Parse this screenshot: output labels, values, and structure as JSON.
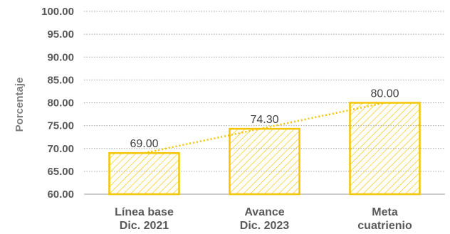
{
  "chart_data": {
    "type": "bar",
    "categories": [
      [
        "Línea base",
        "Dic. 2021"
      ],
      [
        "Avance",
        "Dic. 2023"
      ],
      [
        "Meta",
        "cuatrienio"
      ]
    ],
    "values": [
      69.0,
      74.3,
      80.0
    ],
    "data_labels": [
      "69.00",
      "74.30",
      "80.00"
    ],
    "ylabel": "Porcentaje",
    "ylim": [
      60,
      100
    ],
    "yticks": [
      "60.00",
      "65.00",
      "70.00",
      "75.00",
      "80.00",
      "85.00",
      "90.00",
      "95.00",
      "100.00"
    ],
    "grid": true,
    "trendline": true,
    "colors": {
      "bar": "#f5c400",
      "hatch": "#f5c400",
      "trend": "#f5c400",
      "grid": "#a6a6a6",
      "axis": "#bfbfbf"
    }
  }
}
